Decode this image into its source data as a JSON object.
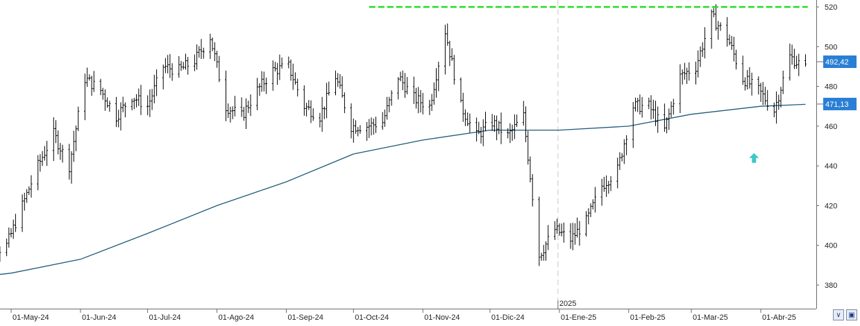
{
  "chart_data": {
    "type": "ohlc",
    "y_ticks": [
      380,
      400,
      420,
      440,
      460,
      480,
      500,
      520
    ],
    "ylim": [
      369,
      525
    ],
    "grid": false,
    "x_ticks": [
      {
        "date": "2024-05-01",
        "label": "01-May-24"
      },
      {
        "date": "2024-06-01",
        "label": "01-Jun-24"
      },
      {
        "date": "2024-07-01",
        "label": "01-Jul-24"
      },
      {
        "date": "2024-08-01",
        "label": "01-Ago-24"
      },
      {
        "date": "2024-09-01",
        "label": "01-Sep-24"
      },
      {
        "date": "2024-10-01",
        "label": "01-Oct-24"
      },
      {
        "date": "2024-11-01",
        "label": "01-Nov-24"
      },
      {
        "date": "2024-12-01",
        "label": "01-Dic-24"
      },
      {
        "date": "2025-01-01",
        "label": "01-Ene-25"
      },
      {
        "date": "2025-02-01",
        "label": "01-Feb-25"
      },
      {
        "date": "2025-03-01",
        "label": "01-Mar-25"
      },
      {
        "date": "2025-04-01",
        "label": "01-Abr-25"
      }
    ],
    "year_marker": {
      "date": "2025-01-01",
      "label": "2025"
    },
    "price_series": {
      "name": "",
      "color": "#000000",
      "anchors": [
        [
          "2024-04-15",
          396
        ],
        [
          "2024-04-22",
          396
        ],
        [
          "2024-04-29",
          400
        ],
        [
          "2024-05-06",
          420
        ],
        [
          "2024-05-13",
          440
        ],
        [
          "2024-05-20",
          456
        ],
        [
          "2024-05-27",
          440
        ],
        [
          "2024-06-03",
          484
        ],
        [
          "2024-06-10",
          478
        ],
        [
          "2024-06-17",
          465
        ],
        [
          "2024-06-24",
          475
        ],
        [
          "2024-07-01",
          470
        ],
        [
          "2024-07-08",
          490
        ],
        [
          "2024-07-15",
          488
        ],
        [
          "2024-07-22",
          493
        ],
        [
          "2024-07-29",
          505
        ],
        [
          "2024-08-05",
          470
        ],
        [
          "2024-08-12",
          465
        ],
        [
          "2024-08-19",
          478
        ],
        [
          "2024-08-26",
          488
        ],
        [
          "2024-09-02",
          490
        ],
        [
          "2024-09-09",
          470
        ],
        [
          "2024-09-16",
          465
        ],
        [
          "2024-09-23",
          485
        ],
        [
          "2024-09-30",
          460
        ],
        [
          "2024-10-07",
          460
        ],
        [
          "2024-10-14",
          462
        ],
        [
          "2024-10-21",
          485
        ],
        [
          "2024-10-28",
          474
        ],
        [
          "2024-11-04",
          470
        ],
        [
          "2024-11-11",
          508
        ],
        [
          "2024-11-18",
          470
        ],
        [
          "2024-11-25",
          455
        ],
        [
          "2024-12-02",
          462
        ],
        [
          "2024-12-09",
          455
        ],
        [
          "2024-12-16",
          465
        ],
        [
          "2024-12-23",
          395
        ],
        [
          "2024-12-30",
          408
        ],
        [
          "2025-01-06",
          403
        ],
        [
          "2025-01-13",
          412
        ],
        [
          "2025-01-20",
          430
        ],
        [
          "2025-01-27",
          438
        ],
        [
          "2025-02-03",
          470
        ],
        [
          "2025-02-10",
          470
        ],
        [
          "2025-02-17",
          458
        ],
        [
          "2025-02-24",
          485
        ],
        [
          "2025-03-03",
          490
        ],
        [
          "2025-03-10",
          515
        ],
        [
          "2025-03-17",
          505
        ],
        [
          "2025-03-24",
          484
        ],
        [
          "2025-03-31",
          478
        ],
        [
          "2025-04-07",
          468
        ],
        [
          "2025-04-14",
          495
        ],
        [
          "2025-04-21",
          489
        ]
      ],
      "last": "492,42"
    },
    "moving_average": {
      "name": "",
      "color": "#1f5a78",
      "points": [
        [
          "2024-04-15",
          384
        ],
        [
          "2024-05-01",
          386
        ],
        [
          "2024-06-01",
          393
        ],
        [
          "2024-07-01",
          406
        ],
        [
          "2024-08-01",
          420
        ],
        [
          "2024-09-01",
          432
        ],
        [
          "2024-10-01",
          446
        ],
        [
          "2024-11-01",
          453
        ],
        [
          "2024-12-01",
          458
        ],
        [
          "2025-01-01",
          458
        ],
        [
          "2025-02-01",
          460
        ],
        [
          "2025-03-01",
          466
        ],
        [
          "2025-04-01",
          470
        ],
        [
          "2025-04-21",
          471
        ]
      ],
      "last": "471,13"
    },
    "resistance_line": {
      "value": 520,
      "from": "2024-10-08",
      "to": "2025-04-22",
      "color": "#22dd22"
    },
    "arrow_marker": {
      "date": "2025-03-29",
      "value": 444,
      "color": "#3cc8c8"
    },
    "badge_color": "#2a7fd4"
  }
}
